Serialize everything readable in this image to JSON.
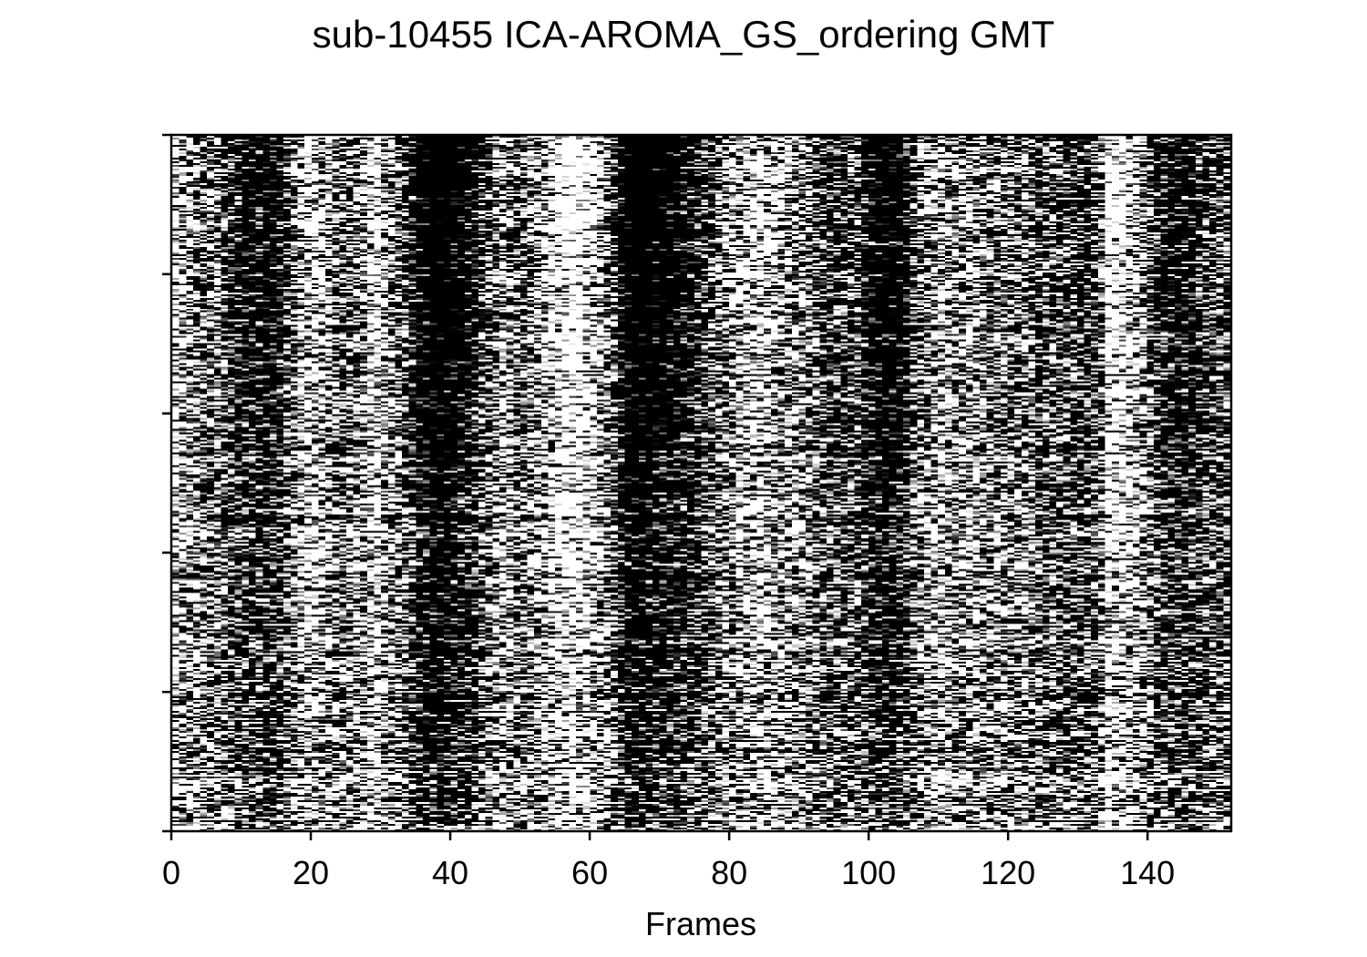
{
  "chart_data": {
    "type": "heatmap",
    "title": "sub-10455 ICA-AROMA_GS_ordering GMT",
    "xlabel": "Frames",
    "ylabel": "",
    "xlim": [
      0,
      152
    ],
    "x_ticks": [
      0,
      20,
      40,
      60,
      80,
      100,
      120,
      140
    ],
    "y_tick_count": 6,
    "y_tick_labels_shown": false,
    "colormap": "grayscale",
    "n_frames": 152,
    "grid": false,
    "legend": "none",
    "frame_darkness_profile": [
      0.35,
      0.4,
      0.45,
      0.5,
      0.55,
      0.55,
      0.5,
      0.6,
      0.65,
      0.7,
      0.72,
      0.75,
      0.72,
      0.78,
      0.75,
      0.7,
      0.6,
      0.5,
      0.4,
      0.35,
      0.35,
      0.4,
      0.45,
      0.5,
      0.55,
      0.55,
      0.5,
      0.45,
      0.35,
      0.3,
      0.45,
      0.5,
      0.55,
      0.6,
      0.7,
      0.8,
      0.85,
      0.88,
      0.9,
      0.88,
      0.85,
      0.8,
      0.75,
      0.7,
      0.6,
      0.55,
      0.5,
      0.45,
      0.5,
      0.55,
      0.55,
      0.5,
      0.45,
      0.4,
      0.35,
      0.3,
      0.25,
      0.2,
      0.25,
      0.3,
      0.35,
      0.4,
      0.5,
      0.6,
      0.75,
      0.85,
      0.9,
      0.9,
      0.88,
      0.85,
      0.85,
      0.8,
      0.78,
      0.75,
      0.72,
      0.7,
      0.65,
      0.6,
      0.55,
      0.5,
      0.45,
      0.4,
      0.38,
      0.35,
      0.35,
      0.38,
      0.4,
      0.42,
      0.45,
      0.48,
      0.5,
      0.55,
      0.6,
      0.62,
      0.65,
      0.65,
      0.62,
      0.6,
      0.62,
      0.7,
      0.78,
      0.8,
      0.82,
      0.8,
      0.78,
      0.72,
      0.6,
      0.5,
      0.45,
      0.4,
      0.4,
      0.45,
      0.5,
      0.5,
      0.45,
      0.45,
      0.5,
      0.55,
      0.5,
      0.5,
      0.55,
      0.55,
      0.5,
      0.55,
      0.6,
      0.6,
      0.55,
      0.6,
      0.62,
      0.6,
      0.65,
      0.62,
      0.6,
      0.55,
      0.25,
      0.3,
      0.3,
      0.35,
      0.4,
      0.5,
      0.55,
      0.65,
      0.7,
      0.72,
      0.75,
      0.72,
      0.7,
      0.65,
      0.62,
      0.6,
      0.6,
      0.58
    ]
  }
}
